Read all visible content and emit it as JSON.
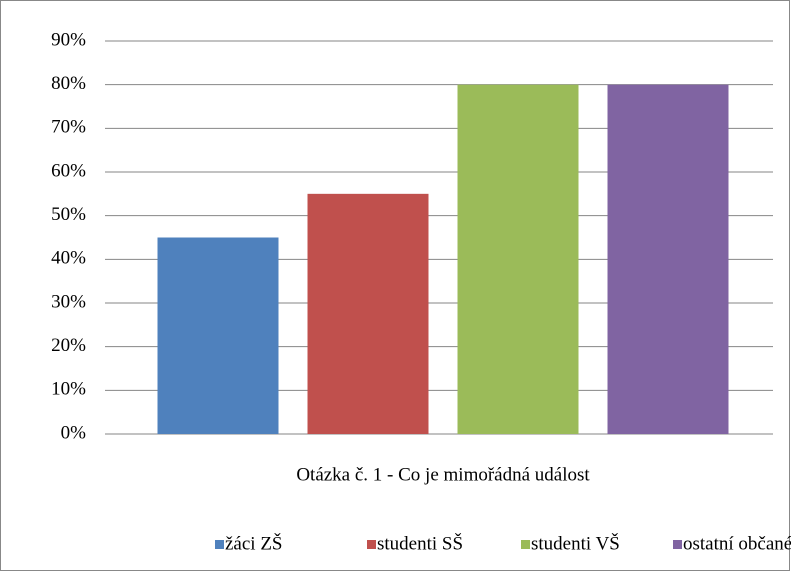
{
  "chart_data": {
    "type": "bar",
    "categories": [
      "Otázka č. 1 - Co je mimořádná událost"
    ],
    "series": [
      {
        "name": "žáci ZŠ",
        "color": "#4f81bd",
        "values": [
          45
        ]
      },
      {
        "name": "studenti SŠ",
        "color": "#c0504d",
        "values": [
          55
        ]
      },
      {
        "name": "studenti VŠ",
        "color": "#9bbb59",
        "values": [
          80
        ]
      },
      {
        "name": "ostatní občané",
        "color": "#8064a2",
        "values": [
          80
        ]
      }
    ],
    "ylim": [
      0,
      90
    ],
    "yticks": [
      {
        "value": 0,
        "label": "0%"
      },
      {
        "value": 10,
        "label": "10%"
      },
      {
        "value": 20,
        "label": "20%"
      },
      {
        "value": 30,
        "label": "30%"
      },
      {
        "value": 40,
        "label": "40%"
      },
      {
        "value": 50,
        "label": "50%"
      },
      {
        "value": 60,
        "label": "60%"
      },
      {
        "value": 70,
        "label": "70%"
      },
      {
        "value": 80,
        "label": "80%"
      },
      {
        "value": 90,
        "label": "90%"
      }
    ],
    "grid": true,
    "legend": "bottom"
  }
}
